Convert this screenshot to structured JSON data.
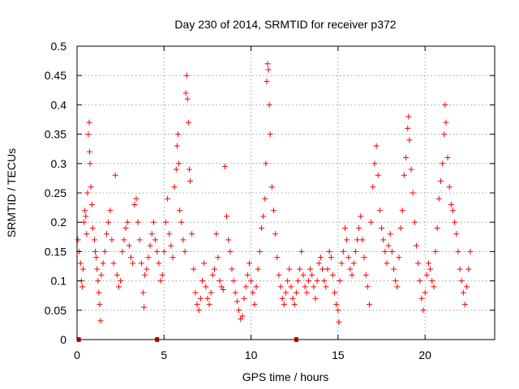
{
  "chart_data": {
    "type": "scatter",
    "title": "Day 230 of 2014, SRMTID for receiver p372",
    "xlabel": "GPS time / hours",
    "ylabel": "SRMTID / TECUs",
    "xlim": [
      0,
      24
    ],
    "ylim": [
      0,
      0.5
    ],
    "xticks": [
      0,
      5,
      10,
      15,
      20
    ],
    "xtick_labels": [
      "0",
      "5",
      "10",
      "15",
      "20"
    ],
    "yticks": [
      0,
      0.05,
      0.1,
      0.15,
      0.2,
      0.25,
      0.3,
      0.35,
      0.4,
      0.45,
      0.5
    ],
    "ytick_labels": [
      "0",
      "0.05",
      "0.1",
      "0.15",
      "0.2",
      "0.25",
      "0.3",
      "0.35",
      "0.4",
      "0.45",
      "0.5"
    ],
    "grid": true,
    "marker": "plus",
    "color": "#ff0000",
    "zero_markers_x": [
      0.1,
      4.6,
      12.6
    ],
    "series": [
      {
        "name": "SRMTID",
        "points": [
          [
            0.05,
            0.17
          ],
          [
            0.12,
            0.15
          ],
          [
            0.2,
            0.13
          ],
          [
            0.25,
            0.1
          ],
          [
            0.3,
            0.09
          ],
          [
            0.35,
            0.12
          ],
          [
            0.4,
            0.2
          ],
          [
            0.45,
            0.22
          ],
          [
            0.5,
            0.21
          ],
          [
            0.55,
            0.18
          ],
          [
            0.6,
            0.25
          ],
          [
            0.65,
            0.35
          ],
          [
            0.7,
            0.37
          ],
          [
            0.72,
            0.32
          ],
          [
            0.75,
            0.3
          ],
          [
            0.8,
            0.26
          ],
          [
            0.85,
            0.23
          ],
          [
            0.9,
            0.19
          ],
          [
            1.0,
            0.17
          ],
          [
            1.05,
            0.15
          ],
          [
            1.1,
            0.14
          ],
          [
            1.15,
            0.12
          ],
          [
            1.2,
            0.1
          ],
          [
            1.25,
            0.08
          ],
          [
            1.3,
            0.06
          ],
          [
            1.35,
            0.032
          ],
          [
            1.4,
            0.11
          ],
          [
            1.5,
            0.13
          ],
          [
            1.6,
            0.15
          ],
          [
            1.7,
            0.18
          ],
          [
            1.8,
            0.2
          ],
          [
            1.9,
            0.22
          ],
          [
            2.0,
            0.17
          ],
          [
            2.1,
            0.13
          ],
          [
            2.2,
            0.28
          ],
          [
            2.3,
            0.11
          ],
          [
            2.4,
            0.09
          ],
          [
            2.5,
            0.1
          ],
          [
            2.6,
            0.15
          ],
          [
            2.7,
            0.17
          ],
          [
            2.8,
            0.19
          ],
          [
            2.9,
            0.2
          ],
          [
            3.0,
            0.16
          ],
          [
            3.1,
            0.14
          ],
          [
            3.2,
            0.13
          ],
          [
            3.3,
            0.23
          ],
          [
            3.4,
            0.24
          ],
          [
            3.5,
            0.2
          ],
          [
            3.6,
            0.17
          ],
          [
            3.7,
            0.13
          ],
          [
            3.8,
            0.08
          ],
          [
            3.85,
            0.055
          ],
          [
            3.9,
            0.11
          ],
          [
            4.0,
            0.12
          ],
          [
            4.1,
            0.14
          ],
          [
            4.2,
            0.16
          ],
          [
            4.3,
            0.18
          ],
          [
            4.4,
            0.2
          ],
          [
            4.5,
            0.17
          ],
          [
            4.6,
            0.15
          ],
          [
            4.7,
            0.13
          ],
          [
            4.8,
            0.1
          ],
          [
            4.9,
            0.11
          ],
          [
            5.0,
            0.15
          ],
          [
            5.1,
            0.2
          ],
          [
            5.2,
            0.24
          ],
          [
            5.3,
            0.18
          ],
          [
            5.4,
            0.16
          ],
          [
            5.5,
            0.14
          ],
          [
            5.6,
            0.26
          ],
          [
            5.7,
            0.29
          ],
          [
            5.75,
            0.33
          ],
          [
            5.8,
            0.35
          ],
          [
            5.85,
            0.3
          ],
          [
            5.9,
            0.22
          ],
          [
            6.0,
            0.2
          ],
          [
            6.1,
            0.17
          ],
          [
            6.2,
            0.15
          ],
          [
            6.25,
            0.42
          ],
          [
            6.3,
            0.45
          ],
          [
            6.35,
            0.41
          ],
          [
            6.4,
            0.37
          ],
          [
            6.45,
            0.29
          ],
          [
            6.5,
            0.27
          ],
          [
            6.6,
            0.18
          ],
          [
            6.7,
            0.12
          ],
          [
            6.8,
            0.08
          ],
          [
            6.9,
            0.06
          ],
          [
            7.0,
            0.05
          ],
          [
            7.1,
            0.07
          ],
          [
            7.2,
            0.1
          ],
          [
            7.3,
            0.13
          ],
          [
            7.4,
            0.09
          ],
          [
            7.5,
            0.07
          ],
          [
            7.6,
            0.06
          ],
          [
            7.7,
            0.08
          ],
          [
            7.8,
            0.11
          ],
          [
            7.9,
            0.12
          ],
          [
            8.0,
            0.18
          ],
          [
            8.1,
            0.14
          ],
          [
            8.2,
            0.1
          ],
          [
            8.3,
            0.09
          ],
          [
            8.4,
            0.085
          ],
          [
            8.5,
            0.295
          ],
          [
            8.6,
            0.21
          ],
          [
            8.7,
            0.17
          ],
          [
            8.8,
            0.15
          ],
          [
            8.9,
            0.12
          ],
          [
            9.0,
            0.1
          ],
          [
            9.1,
            0.08
          ],
          [
            9.2,
            0.065
          ],
          [
            9.3,
            0.05
          ],
          [
            9.4,
            0.035
          ],
          [
            9.5,
            0.04
          ],
          [
            9.6,
            0.07
          ],
          [
            9.7,
            0.09
          ],
          [
            9.8,
            0.11
          ],
          [
            9.9,
            0.13
          ],
          [
            10.0,
            0.1
          ],
          [
            10.1,
            0.08
          ],
          [
            10.2,
            0.06
          ],
          [
            10.3,
            0.09
          ],
          [
            10.4,
            0.12
          ],
          [
            10.5,
            0.15
          ],
          [
            10.6,
            0.19
          ],
          [
            10.7,
            0.21
          ],
          [
            10.8,
            0.24
          ],
          [
            10.85,
            0.3
          ],
          [
            10.9,
            0.44
          ],
          [
            10.95,
            0.47
          ],
          [
            11.0,
            0.46
          ],
          [
            11.05,
            0.4
          ],
          [
            11.1,
            0.35
          ],
          [
            11.2,
            0.26
          ],
          [
            11.3,
            0.22
          ],
          [
            11.4,
            0.18
          ],
          [
            11.5,
            0.14
          ],
          [
            11.6,
            0.11
          ],
          [
            11.7,
            0.09
          ],
          [
            11.8,
            0.07
          ],
          [
            11.9,
            0.06
          ],
          [
            12.0,
            0.08
          ],
          [
            12.1,
            0.1
          ],
          [
            12.2,
            0.12
          ],
          [
            12.3,
            0.09
          ],
          [
            12.4,
            0.07
          ],
          [
            12.5,
            0.06
          ],
          [
            12.6,
            0.08
          ],
          [
            12.7,
            0.1
          ],
          [
            12.8,
            0.12
          ],
          [
            12.9,
            0.15
          ],
          [
            13.0,
            0.11
          ],
          [
            13.1,
            0.09
          ],
          [
            13.2,
            0.08
          ],
          [
            13.3,
            0.1
          ],
          [
            13.4,
            0.12
          ],
          [
            13.5,
            0.11
          ],
          [
            13.6,
            0.09
          ],
          [
            13.7,
            0.07
          ],
          [
            13.8,
            0.1
          ],
          [
            13.9,
            0.13
          ],
          [
            14.0,
            0.14
          ],
          [
            14.1,
            0.12
          ],
          [
            14.2,
            0.1
          ],
          [
            14.3,
            0.09
          ],
          [
            14.4,
            0.12
          ],
          [
            14.5,
            0.15
          ],
          [
            14.6,
            0.14
          ],
          [
            14.7,
            0.11
          ],
          [
            14.8,
            0.08
          ],
          [
            14.9,
            0.06
          ],
          [
            15.0,
            0.05
          ],
          [
            15.05,
            0.03
          ],
          [
            15.1,
            0.1
          ],
          [
            15.2,
            0.13
          ],
          [
            15.3,
            0.15
          ],
          [
            15.4,
            0.19
          ],
          [
            15.5,
            0.17
          ],
          [
            15.6,
            0.14
          ],
          [
            15.7,
            0.12
          ],
          [
            15.8,
            0.11
          ],
          [
            15.9,
            0.13
          ],
          [
            16.0,
            0.15
          ],
          [
            16.1,
            0.17
          ],
          [
            16.2,
            0.19
          ],
          [
            16.3,
            0.21
          ],
          [
            16.4,
            0.17
          ],
          [
            16.5,
            0.14
          ],
          [
            16.6,
            0.11
          ],
          [
            16.7,
            0.09
          ],
          [
            16.8,
            0.06
          ],
          [
            16.9,
            0.2
          ],
          [
            17.0,
            0.26
          ],
          [
            17.1,
            0.3
          ],
          [
            17.2,
            0.33
          ],
          [
            17.3,
            0.28
          ],
          [
            17.4,
            0.22
          ],
          [
            17.5,
            0.19
          ],
          [
            17.6,
            0.17
          ],
          [
            17.7,
            0.15
          ],
          [
            17.8,
            0.13
          ],
          [
            17.9,
            0.16
          ],
          [
            18.0,
            0.18
          ],
          [
            18.1,
            0.15
          ],
          [
            18.2,
            0.12
          ],
          [
            18.3,
            0.1
          ],
          [
            18.4,
            0.09
          ],
          [
            18.5,
            0.14
          ],
          [
            18.6,
            0.19
          ],
          [
            18.7,
            0.22
          ],
          [
            18.8,
            0.28
          ],
          [
            18.9,
            0.31
          ],
          [
            19.0,
            0.36
          ],
          [
            19.05,
            0.38
          ],
          [
            19.1,
            0.34
          ],
          [
            19.2,
            0.29
          ],
          [
            19.3,
            0.25
          ],
          [
            19.4,
            0.2
          ],
          [
            19.5,
            0.16
          ],
          [
            19.6,
            0.13
          ],
          [
            19.7,
            0.1
          ],
          [
            19.8,
            0.07
          ],
          [
            19.9,
            0.05
          ],
          [
            20.0,
            0.08
          ],
          [
            20.1,
            0.11
          ],
          [
            20.2,
            0.13
          ],
          [
            20.3,
            0.12
          ],
          [
            20.4,
            0.1
          ],
          [
            20.5,
            0.09
          ],
          [
            20.6,
            0.15
          ],
          [
            20.7,
            0.19
          ],
          [
            20.8,
            0.24
          ],
          [
            20.9,
            0.27
          ],
          [
            21.0,
            0.3
          ],
          [
            21.1,
            0.35
          ],
          [
            21.15,
            0.4
          ],
          [
            21.2,
            0.37
          ],
          [
            21.3,
            0.31
          ],
          [
            21.4,
            0.26
          ],
          [
            21.5,
            0.23
          ],
          [
            21.6,
            0.22
          ],
          [
            21.7,
            0.2
          ],
          [
            21.8,
            0.18
          ],
          [
            21.9,
            0.15
          ],
          [
            22.0,
            0.12
          ],
          [
            22.1,
            0.1
          ],
          [
            22.2,
            0.08
          ],
          [
            22.3,
            0.06
          ],
          [
            22.4,
            0.09
          ],
          [
            22.5,
            0.12
          ],
          [
            22.6,
            0.15
          ]
        ]
      }
    ]
  }
}
